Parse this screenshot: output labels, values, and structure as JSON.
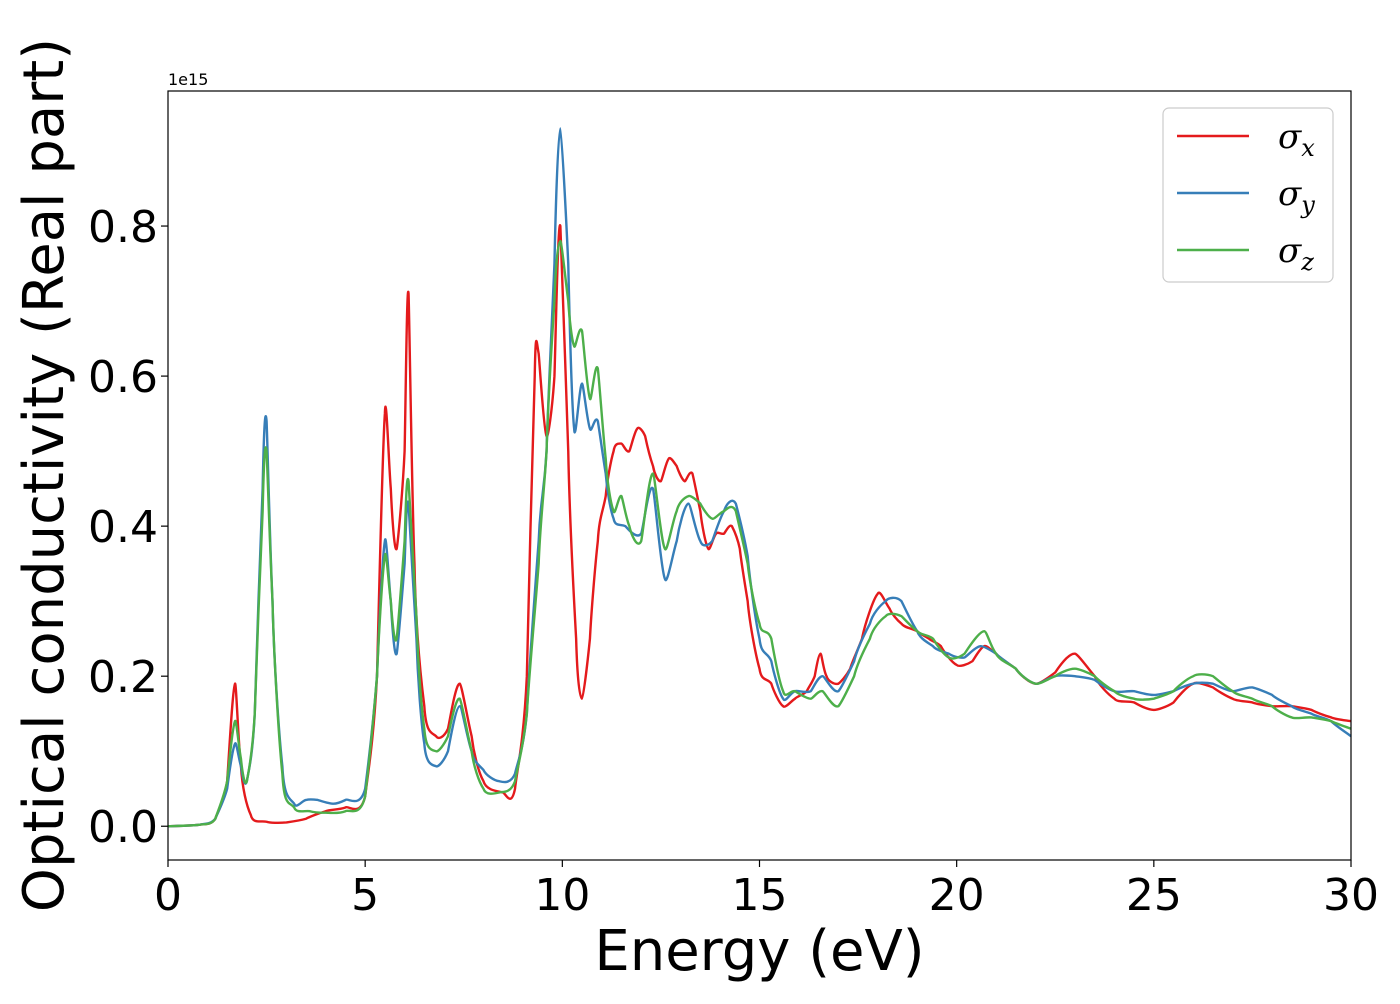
{
  "chart_data": {
    "type": "line",
    "xlabel": "Energy (eV)",
    "ylabel": "Optical conductivity (Real part)",
    "offset_text": "1e15",
    "xlim": [
      0,
      30
    ],
    "ylim": [
      -0.045,
      0.98
    ],
    "y_scale_multiplier": 1000000000000000.0,
    "x_ticks": [
      0,
      5,
      10,
      15,
      20,
      25,
      30
    ],
    "x_tick_labels": [
      "0",
      "5",
      "10",
      "15",
      "20",
      "25",
      "30"
    ],
    "y_ticks": [
      0.0,
      0.2,
      0.4,
      0.6,
      0.8
    ],
    "y_tick_labels": [
      "0.0",
      "0.2",
      "0.4",
      "0.6",
      "0.8"
    ],
    "grid": false,
    "legend_position": "top-right",
    "series": [
      {
        "name": "σx",
        "symbol": "σ",
        "subscript": "x",
        "color": "#e41a1c",
        "points": [
          [
            0,
            0
          ],
          [
            0.8,
            0.002
          ],
          [
            1.2,
            0.01
          ],
          [
            1.5,
            0.06
          ],
          [
            1.7,
            0.19
          ],
          [
            1.85,
            0.08
          ],
          [
            2.1,
            0.015
          ],
          [
            2.5,
            0.006
          ],
          [
            3.0,
            0.005
          ],
          [
            3.5,
            0.01
          ],
          [
            4.0,
            0.02
          ],
          [
            4.5,
            0.025
          ],
          [
            5.0,
            0.04
          ],
          [
            5.3,
            0.2
          ],
          [
            5.5,
            0.55
          ],
          [
            5.65,
            0.45
          ],
          [
            5.8,
            0.37
          ],
          [
            6.0,
            0.5
          ],
          [
            6.1,
            0.71
          ],
          [
            6.25,
            0.35
          ],
          [
            6.5,
            0.16
          ],
          [
            6.8,
            0.12
          ],
          [
            7.1,
            0.13
          ],
          [
            7.4,
            0.19
          ],
          [
            7.7,
            0.12
          ],
          [
            8.0,
            0.06
          ],
          [
            8.5,
            0.045
          ],
          [
            8.8,
            0.05
          ],
          [
            9.1,
            0.2
          ],
          [
            9.3,
            0.6
          ],
          [
            9.4,
            0.63
          ],
          [
            9.6,
            0.52
          ],
          [
            9.8,
            0.6
          ],
          [
            9.95,
            0.8
          ],
          [
            10.15,
            0.5
          ],
          [
            10.35,
            0.25
          ],
          [
            10.5,
            0.17
          ],
          [
            10.7,
            0.25
          ],
          [
            10.9,
            0.38
          ],
          [
            11.1,
            0.44
          ],
          [
            11.3,
            0.5
          ],
          [
            11.5,
            0.51
          ],
          [
            11.7,
            0.5
          ],
          [
            11.9,
            0.53
          ],
          [
            12.1,
            0.52
          ],
          [
            12.3,
            0.48
          ],
          [
            12.5,
            0.46
          ],
          [
            12.7,
            0.49
          ],
          [
            12.9,
            0.48
          ],
          [
            13.1,
            0.46
          ],
          [
            13.3,
            0.47
          ],
          [
            13.5,
            0.42
          ],
          [
            13.7,
            0.37
          ],
          [
            13.9,
            0.39
          ],
          [
            14.1,
            0.39
          ],
          [
            14.3,
            0.4
          ],
          [
            14.5,
            0.37
          ],
          [
            14.7,
            0.3
          ],
          [
            15.0,
            0.21
          ],
          [
            15.3,
            0.19
          ],
          [
            15.6,
            0.16
          ],
          [
            15.9,
            0.17
          ],
          [
            16.2,
            0.18
          ],
          [
            16.4,
            0.2
          ],
          [
            16.55,
            0.23
          ],
          [
            16.7,
            0.2
          ],
          [
            17.0,
            0.19
          ],
          [
            17.3,
            0.21
          ],
          [
            17.6,
            0.25
          ],
          [
            18.0,
            0.31
          ],
          [
            18.3,
            0.29
          ],
          [
            18.6,
            0.27
          ],
          [
            19.0,
            0.26
          ],
          [
            19.3,
            0.25
          ],
          [
            19.6,
            0.24
          ],
          [
            20.0,
            0.215
          ],
          [
            20.4,
            0.22
          ],
          [
            20.7,
            0.24
          ],
          [
            21.0,
            0.23
          ],
          [
            21.5,
            0.21
          ],
          [
            22.0,
            0.19
          ],
          [
            22.5,
            0.205
          ],
          [
            23.0,
            0.23
          ],
          [
            23.5,
            0.2
          ],
          [
            24.0,
            0.17
          ],
          [
            24.5,
            0.165
          ],
          [
            25.0,
            0.155
          ],
          [
            25.5,
            0.165
          ],
          [
            26.0,
            0.19
          ],
          [
            26.5,
            0.185
          ],
          [
            27.0,
            0.17
          ],
          [
            27.5,
            0.165
          ],
          [
            28.0,
            0.16
          ],
          [
            28.5,
            0.16
          ],
          [
            29.0,
            0.155
          ],
          [
            29.5,
            0.145
          ],
          [
            30.0,
            0.14
          ]
        ]
      },
      {
        "name": "σy",
        "symbol": "σ",
        "subscript": "y",
        "color": "#377eb8",
        "points": [
          [
            0,
            0
          ],
          [
            0.8,
            0.002
          ],
          [
            1.2,
            0.01
          ],
          [
            1.5,
            0.05
          ],
          [
            1.7,
            0.11
          ],
          [
            1.85,
            0.08
          ],
          [
            2.0,
            0.06
          ],
          [
            2.2,
            0.15
          ],
          [
            2.4,
            0.45
          ],
          [
            2.5,
            0.54
          ],
          [
            2.65,
            0.3
          ],
          [
            2.9,
            0.08
          ],
          [
            3.2,
            0.03
          ],
          [
            3.5,
            0.035
          ],
          [
            3.8,
            0.035
          ],
          [
            4.2,
            0.03
          ],
          [
            4.5,
            0.035
          ],
          [
            5.0,
            0.05
          ],
          [
            5.3,
            0.2
          ],
          [
            5.5,
            0.38
          ],
          [
            5.65,
            0.3
          ],
          [
            5.8,
            0.23
          ],
          [
            6.0,
            0.35
          ],
          [
            6.1,
            0.43
          ],
          [
            6.3,
            0.25
          ],
          [
            6.5,
            0.11
          ],
          [
            6.8,
            0.08
          ],
          [
            7.1,
            0.1
          ],
          [
            7.4,
            0.16
          ],
          [
            7.7,
            0.1
          ],
          [
            8.0,
            0.075
          ],
          [
            8.4,
            0.06
          ],
          [
            8.8,
            0.07
          ],
          [
            9.1,
            0.15
          ],
          [
            9.4,
            0.38
          ],
          [
            9.6,
            0.5
          ],
          [
            9.8,
            0.75
          ],
          [
            9.95,
            0.93
          ],
          [
            10.15,
            0.75
          ],
          [
            10.3,
            0.53
          ],
          [
            10.5,
            0.59
          ],
          [
            10.7,
            0.53
          ],
          [
            10.9,
            0.54
          ],
          [
            11.1,
            0.47
          ],
          [
            11.3,
            0.41
          ],
          [
            11.6,
            0.4
          ],
          [
            12.0,
            0.39
          ],
          [
            12.3,
            0.45
          ],
          [
            12.6,
            0.33
          ],
          [
            12.9,
            0.38
          ],
          [
            13.2,
            0.43
          ],
          [
            13.5,
            0.38
          ],
          [
            13.8,
            0.38
          ],
          [
            14.1,
            0.42
          ],
          [
            14.4,
            0.43
          ],
          [
            14.7,
            0.36
          ],
          [
            15.0,
            0.25
          ],
          [
            15.3,
            0.22
          ],
          [
            15.6,
            0.17
          ],
          [
            15.9,
            0.18
          ],
          [
            16.3,
            0.18
          ],
          [
            16.6,
            0.2
          ],
          [
            17.0,
            0.18
          ],
          [
            17.4,
            0.22
          ],
          [
            17.8,
            0.27
          ],
          [
            18.2,
            0.3
          ],
          [
            18.6,
            0.3
          ],
          [
            19.0,
            0.26
          ],
          [
            19.4,
            0.24
          ],
          [
            19.8,
            0.23
          ],
          [
            20.2,
            0.225
          ],
          [
            20.6,
            0.24
          ],
          [
            21.0,
            0.23
          ],
          [
            21.5,
            0.21
          ],
          [
            22.0,
            0.19
          ],
          [
            22.5,
            0.2
          ],
          [
            23.0,
            0.2
          ],
          [
            23.5,
            0.195
          ],
          [
            24.0,
            0.18
          ],
          [
            24.5,
            0.18
          ],
          [
            25.0,
            0.175
          ],
          [
            25.5,
            0.18
          ],
          [
            26.0,
            0.19
          ],
          [
            26.5,
            0.19
          ],
          [
            27.0,
            0.18
          ],
          [
            27.5,
            0.185
          ],
          [
            28.0,
            0.175
          ],
          [
            28.5,
            0.16
          ],
          [
            29.0,
            0.15
          ],
          [
            29.5,
            0.14
          ],
          [
            30.0,
            0.12
          ]
        ]
      },
      {
        "name": "σz",
        "symbol": "σ",
        "subscript": "z",
        "color": "#4daf4a",
        "points": [
          [
            0,
            0
          ],
          [
            0.8,
            0.002
          ],
          [
            1.2,
            0.01
          ],
          [
            1.5,
            0.06
          ],
          [
            1.7,
            0.14
          ],
          [
            1.85,
            0.09
          ],
          [
            2.0,
            0.06
          ],
          [
            2.2,
            0.15
          ],
          [
            2.4,
            0.42
          ],
          [
            2.5,
            0.5
          ],
          [
            2.65,
            0.3
          ],
          [
            2.9,
            0.07
          ],
          [
            3.2,
            0.025
          ],
          [
            3.6,
            0.02
          ],
          [
            4.0,
            0.018
          ],
          [
            4.5,
            0.02
          ],
          [
            5.0,
            0.04
          ],
          [
            5.3,
            0.2
          ],
          [
            5.5,
            0.36
          ],
          [
            5.65,
            0.3
          ],
          [
            5.8,
            0.25
          ],
          [
            6.0,
            0.38
          ],
          [
            6.1,
            0.46
          ],
          [
            6.3,
            0.28
          ],
          [
            6.5,
            0.13
          ],
          [
            6.8,
            0.1
          ],
          [
            7.1,
            0.12
          ],
          [
            7.4,
            0.17
          ],
          [
            7.7,
            0.1
          ],
          [
            8.0,
            0.05
          ],
          [
            8.4,
            0.045
          ],
          [
            8.8,
            0.06
          ],
          [
            9.1,
            0.15
          ],
          [
            9.4,
            0.35
          ],
          [
            9.6,
            0.5
          ],
          [
            9.8,
            0.7
          ],
          [
            9.95,
            0.78
          ],
          [
            10.15,
            0.7
          ],
          [
            10.3,
            0.64
          ],
          [
            10.5,
            0.66
          ],
          [
            10.7,
            0.57
          ],
          [
            10.9,
            0.61
          ],
          [
            11.1,
            0.49
          ],
          [
            11.3,
            0.42
          ],
          [
            11.5,
            0.44
          ],
          [
            11.7,
            0.4
          ],
          [
            12.0,
            0.38
          ],
          [
            12.3,
            0.47
          ],
          [
            12.6,
            0.37
          ],
          [
            12.9,
            0.42
          ],
          [
            13.2,
            0.44
          ],
          [
            13.5,
            0.43
          ],
          [
            13.8,
            0.41
          ],
          [
            14.1,
            0.42
          ],
          [
            14.4,
            0.42
          ],
          [
            14.7,
            0.35
          ],
          [
            15.0,
            0.27
          ],
          [
            15.3,
            0.25
          ],
          [
            15.6,
            0.18
          ],
          [
            15.9,
            0.18
          ],
          [
            16.3,
            0.17
          ],
          [
            16.6,
            0.18
          ],
          [
            17.0,
            0.16
          ],
          [
            17.4,
            0.2
          ],
          [
            17.8,
            0.25
          ],
          [
            18.2,
            0.28
          ],
          [
            18.6,
            0.28
          ],
          [
            19.0,
            0.26
          ],
          [
            19.4,
            0.25
          ],
          [
            19.8,
            0.225
          ],
          [
            20.2,
            0.23
          ],
          [
            20.7,
            0.26
          ],
          [
            21.0,
            0.23
          ],
          [
            21.5,
            0.21
          ],
          [
            22.0,
            0.19
          ],
          [
            22.5,
            0.2
          ],
          [
            23.0,
            0.21
          ],
          [
            23.5,
            0.2
          ],
          [
            24.0,
            0.18
          ],
          [
            24.5,
            0.17
          ],
          [
            25.0,
            0.17
          ],
          [
            25.5,
            0.18
          ],
          [
            26.0,
            0.2
          ],
          [
            26.5,
            0.2
          ],
          [
            27.0,
            0.18
          ],
          [
            27.5,
            0.17
          ],
          [
            28.0,
            0.16
          ],
          [
            28.5,
            0.145
          ],
          [
            29.0,
            0.145
          ],
          [
            29.5,
            0.14
          ],
          [
            30.0,
            0.13
          ]
        ]
      }
    ]
  }
}
